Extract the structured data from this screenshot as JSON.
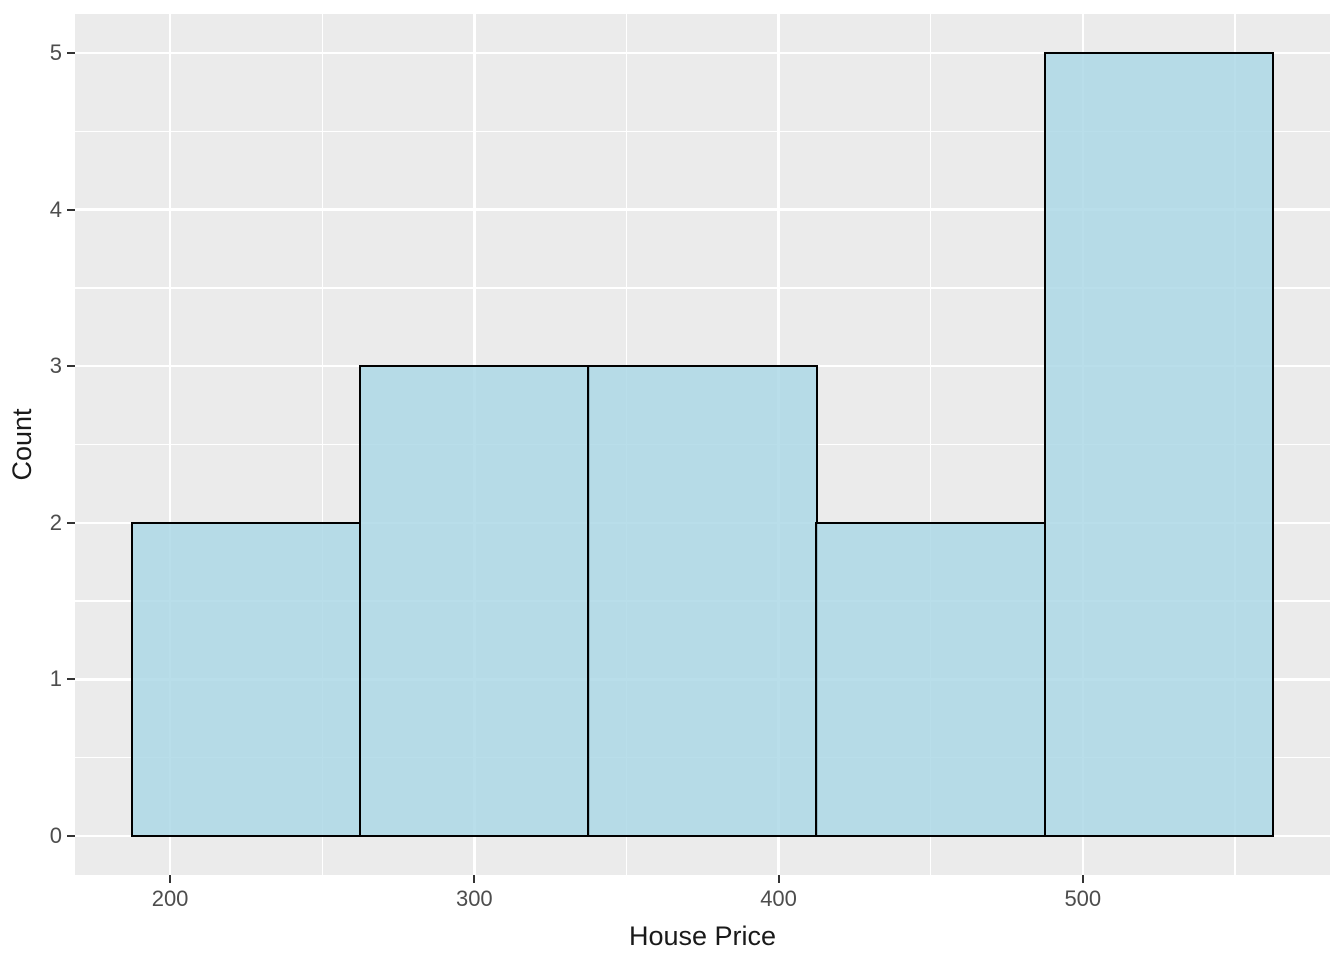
{
  "chart_data": {
    "type": "bar",
    "subtype": "histogram",
    "title": "",
    "xlabel": "House Price",
    "ylabel": "Count",
    "bins": [
      {
        "start": 187.5,
        "end": 262.5,
        "count": 2
      },
      {
        "start": 262.5,
        "end": 337.5,
        "count": 3
      },
      {
        "start": 337.5,
        "end": 412.5,
        "count": 3
      },
      {
        "start": 412.5,
        "end": 487.5,
        "count": 2
      },
      {
        "start": 487.5,
        "end": 562.5,
        "count": 5
      }
    ],
    "categories_bin_centers": [
      225,
      300,
      375,
      450,
      525
    ],
    "values": [
      2,
      3,
      3,
      2,
      5
    ],
    "x_ticks": [
      200,
      300,
      400,
      500
    ],
    "x_minor_ticks": [
      250,
      350,
      450,
      550
    ],
    "y_ticks": [
      0,
      1,
      2,
      3,
      4,
      5
    ],
    "y_minor_ticks": [
      0.5,
      1.5,
      2.5,
      3.5,
      4.5
    ],
    "xlim": [
      168.75,
      581.25
    ],
    "ylim": [
      -0.25,
      5.25
    ],
    "grid": "on",
    "legend": "none",
    "style": {
      "panel_bg": "#EBEBEB",
      "grid_major_color": "#FFFFFF",
      "grid_minor_color": "#FFFFFF",
      "bar_fill": "#ADD8E6",
      "bar_fill_alpha": 0.85,
      "bar_border": "#000000",
      "tick_label_color": "#4D4D4D",
      "tick_mark_color": "#333333",
      "axis_title_color": "#1A1A1A"
    }
  }
}
